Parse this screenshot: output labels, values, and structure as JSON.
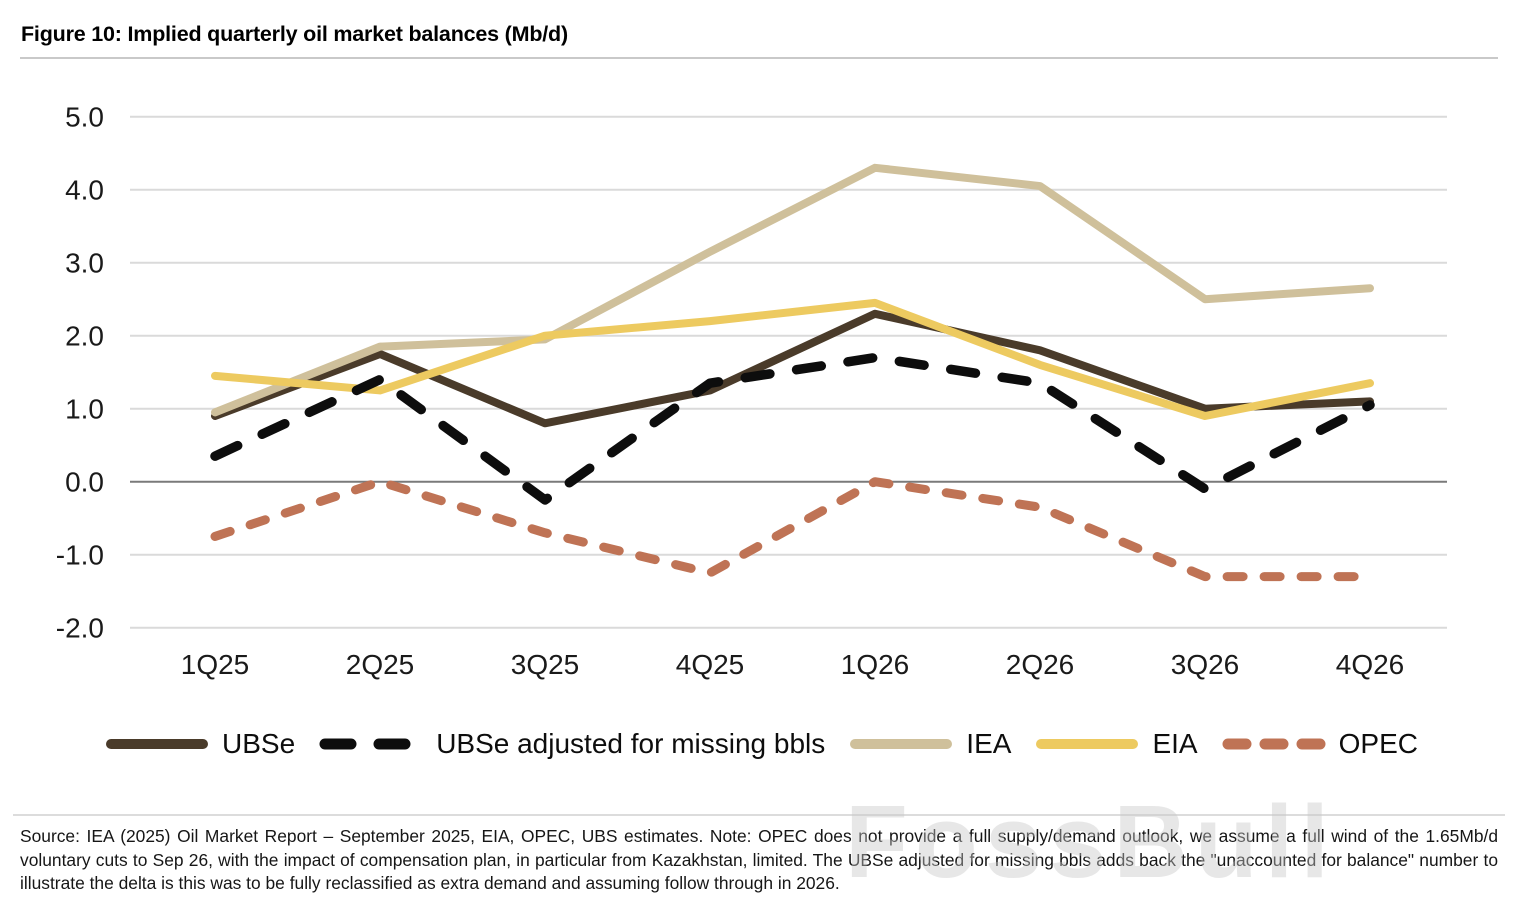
{
  "title": "Figure 10: Implied quarterly oil market balances (Mb/d)",
  "chart_data": {
    "type": "line",
    "categories": [
      "1Q25",
      "2Q25",
      "3Q25",
      "4Q25",
      "1Q26",
      "2Q26",
      "3Q26",
      "4Q26"
    ],
    "series": [
      {
        "name": "UBSe",
        "color": "#4a3b2a",
        "style": "solid",
        "width": 8,
        "z": 2,
        "values": [
          0.9,
          1.75,
          0.8,
          1.25,
          2.3,
          1.8,
          1.0,
          1.1
        ]
      },
      {
        "name": "UBSe adjusted for missing bbls",
        "color": "#0d0d0d",
        "style": "dashed",
        "dash": "25 27",
        "legend_dash": "26 28",
        "width": 9.5,
        "z": 5,
        "values": [
          0.35,
          1.4,
          -0.25,
          1.35,
          1.7,
          1.35,
          -0.1,
          1.05
        ]
      },
      {
        "name": "IEA",
        "color": "#cfc09b",
        "style": "solid",
        "width": 8,
        "z": 3,
        "values": [
          0.95,
          1.85,
          1.95,
          3.15,
          4.3,
          4.05,
          2.5,
          2.65
        ]
      },
      {
        "name": "EIA",
        "color": "#edca60",
        "style": "solid",
        "width": 8,
        "z": 4,
        "values": [
          1.45,
          1.25,
          2.0,
          2.2,
          2.45,
          1.6,
          0.9,
          1.35
        ]
      },
      {
        "name": "OPEC",
        "color": "#bf7355",
        "style": "dashed",
        "dash": "16 21",
        "legend_dash": "18 19",
        "width": 9,
        "z": 1,
        "values": [
          -0.75,
          0.0,
          -0.7,
          -1.25,
          0.0,
          -0.35,
          -1.3,
          -1.3
        ]
      }
    ],
    "title": "Implied quarterly oil market balances (Mb/d)",
    "xlabel": "",
    "ylabel": "",
    "ylim": [
      -2.0,
      5.0
    ],
    "yticks": [
      5.0,
      4.0,
      3.0,
      2.0,
      1.0,
      0.0,
      -1.0,
      -2.0
    ],
    "grid": true,
    "grid_color": "#dadada",
    "zero_line_color": "#7a7a7a",
    "axis_label_color": "#1a1a1a",
    "legend_position": "bottom"
  },
  "footer": {
    "source_note": "Source: IEA (2025) Oil Market Report – September 2025, EIA, OPEC, UBS estimates. Note: OPEC does not provide a full supply/demand outlook, we assume a full wind of the 1.65Mb/d voluntary cuts to Sep 26, with the impact of compensation plan, in particular from Kazakhstan, limited. The UBSe adjusted for missing bbls adds back the \"unaccounted for balance\" number to illustrate the delta is this was to be fully reclassified as extra demand and assuming follow through in 2026."
  },
  "watermark": "FossBull"
}
